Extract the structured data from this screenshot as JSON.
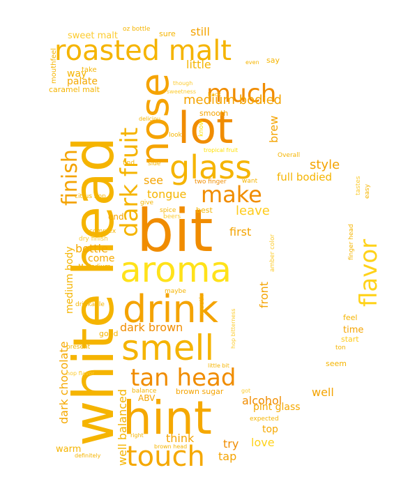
{
  "palette": {
    "gold": "#F5B400",
    "orange": "#F08C00",
    "amber": "#F4A300",
    "yellow": "#FFE000",
    "light": "#FCCB2E"
  },
  "words": [
    {
      "text": "white head",
      "color": "#F5B400"
    },
    {
      "text": "hint",
      "color": "#F5A800"
    },
    {
      "text": "bit",
      "color": "#F08C00"
    },
    {
      "text": "nose",
      "color": "#F5A300"
    },
    {
      "text": "lot",
      "color": "#F08C00"
    },
    {
      "text": "aroma",
      "color": "#FFE21A"
    },
    {
      "text": "drink",
      "color": "#F4A300"
    },
    {
      "text": "smell",
      "color": "#F5B400"
    },
    {
      "text": "touch",
      "color": "#F5A800"
    },
    {
      "text": "glass",
      "color": "#F5B400"
    },
    {
      "text": "roasted malt",
      "color": "#F5B400"
    },
    {
      "text": "much",
      "color": "#F08C00"
    },
    {
      "text": "tan head",
      "color": "#F08C00"
    },
    {
      "text": "flavor",
      "color": "#FFD21A"
    },
    {
      "text": "make",
      "color": "#F08C00"
    },
    {
      "text": "finish",
      "color": "#F4A300"
    },
    {
      "text": "dark fruit",
      "color": "#F5B400"
    },
    {
      "text": "dark chocolate",
      "color": "#F5A800"
    },
    {
      "text": "medium bodied",
      "color": "#F4A300"
    },
    {
      "text": "alcohol",
      "color": "#F08C00"
    },
    {
      "text": "style",
      "color": "#F4A300"
    },
    {
      "text": "full bodied",
      "color": "#F5B400"
    },
    {
      "text": "tongue",
      "color": "#F5B400"
    },
    {
      "text": "leave",
      "color": "#FFCB1A"
    },
    {
      "text": "first",
      "color": "#F4A300"
    },
    {
      "text": "bottle",
      "color": "#F5A800"
    },
    {
      "text": "dark brown",
      "color": "#F08C00"
    },
    {
      "text": "medium body",
      "color": "#F5B400"
    },
    {
      "text": "front",
      "color": "#F4A300"
    },
    {
      "text": "well balanced",
      "color": "#F5B400"
    },
    {
      "text": "think",
      "color": "#F4A300"
    },
    {
      "text": "well",
      "color": "#F4A300"
    },
    {
      "text": "try",
      "color": "#F08C00"
    },
    {
      "text": "love",
      "color": "#FFD21A"
    },
    {
      "text": "tap",
      "color": "#F4A300"
    },
    {
      "text": "pint glass",
      "color": "#F5A800"
    },
    {
      "text": "top",
      "color": "#F5A800"
    },
    {
      "text": "little",
      "color": "#F5B400"
    },
    {
      "text": "palate",
      "color": "#F5A800"
    },
    {
      "text": "way",
      "color": "#F5B400"
    },
    {
      "text": "still",
      "color": "#F4A300"
    },
    {
      "text": "brew",
      "color": "#F4A300"
    },
    {
      "text": "see",
      "color": "#F4A300"
    },
    {
      "text": "sweet malt",
      "color": "#FCCB2E"
    },
    {
      "text": "mouthfeel",
      "color": "#F5B400"
    },
    {
      "text": "caramel malt",
      "color": "#F5B400"
    },
    {
      "text": "sure",
      "color": "#F5B400"
    },
    {
      "text": "oz bottle",
      "color": "#F5B400"
    },
    {
      "text": "say",
      "color": "#F5B400"
    },
    {
      "text": "take",
      "color": "#F5B400"
    },
    {
      "text": "even",
      "color": "#F5B400"
    },
    {
      "text": "though",
      "color": "#FCCB2E"
    },
    {
      "text": "sweetness",
      "color": "#FCCB2E"
    },
    {
      "text": "back",
      "color": "#F5B400"
    },
    {
      "text": "smooth",
      "color": "#F4A300"
    },
    {
      "text": "deliciou",
      "color": "#F5B400"
    },
    {
      "text": "look",
      "color": "#F5B400"
    },
    {
      "text": "know",
      "color": "#FFE000"
    },
    {
      "text": "tropical fruit",
      "color": "#FFE000"
    },
    {
      "text": "Overall",
      "color": "#F5B400"
    },
    {
      "text": "find",
      "color": "#F5B400"
    },
    {
      "text": "side",
      "color": "#F5B400"
    },
    {
      "text": "two finger",
      "color": "#F08C00"
    },
    {
      "text": "want",
      "color": "#F5B400"
    },
    {
      "text": "citrus hop",
      "color": "#F5B400"
    },
    {
      "text": "give",
      "color": "#F5B400"
    },
    {
      "text": "spice",
      "color": "#F5B400"
    },
    {
      "text": "best",
      "color": "#F5B400"
    },
    {
      "text": "beers",
      "color": "#FCCB2E"
    },
    {
      "text": "end",
      "color": "#F4A300"
    },
    {
      "text": "complex",
      "color": "#F5B400"
    },
    {
      "text": "dry finish",
      "color": "#FCCB2E"
    },
    {
      "text": "M Medium",
      "color": "#F5B400"
    },
    {
      "text": "come",
      "color": "#F5A800"
    },
    {
      "text": "amber color",
      "color": "#FCCB2E"
    },
    {
      "text": "tastes",
      "color": "#FCCB2E"
    },
    {
      "text": "easy",
      "color": "#F5B400"
    },
    {
      "text": "finger head",
      "color": "#F5B400"
    },
    {
      "text": "maybe",
      "color": "#F5B400"
    },
    {
      "text": "mouth",
      "color": "#F5B400"
    },
    {
      "text": "hop bitterness",
      "color": "#FCCB2E"
    },
    {
      "text": "drinkable",
      "color": "#F5B400"
    },
    {
      "text": "feel",
      "color": "#F5B400"
    },
    {
      "text": "time",
      "color": "#F4A300"
    },
    {
      "text": "start",
      "color": "#FFCB1A"
    },
    {
      "text": "ton",
      "color": "#F5B400"
    },
    {
      "text": "good",
      "color": "#F5B400"
    },
    {
      "text": "present",
      "color": "#F5B400"
    },
    {
      "text": "seem",
      "color": "#F5B400"
    },
    {
      "text": "hop flavor",
      "color": "#FCCB2E"
    },
    {
      "text": "little bit",
      "color": "#F5B400"
    },
    {
      "text": "balance",
      "color": "#F5B400"
    },
    {
      "text": "brown sugar",
      "color": "#F4A300"
    },
    {
      "text": "got",
      "color": "#FCCB2E"
    },
    {
      "text": "ABV",
      "color": "#F4A300"
    },
    {
      "text": "expected",
      "color": "#F5B400"
    },
    {
      "text": "right",
      "color": "#F5B400"
    },
    {
      "text": "brown head",
      "color": "#F5B400"
    },
    {
      "text": "warm",
      "color": "#F5B400"
    },
    {
      "text": "definitely",
      "color": "#F5B400"
    }
  ]
}
